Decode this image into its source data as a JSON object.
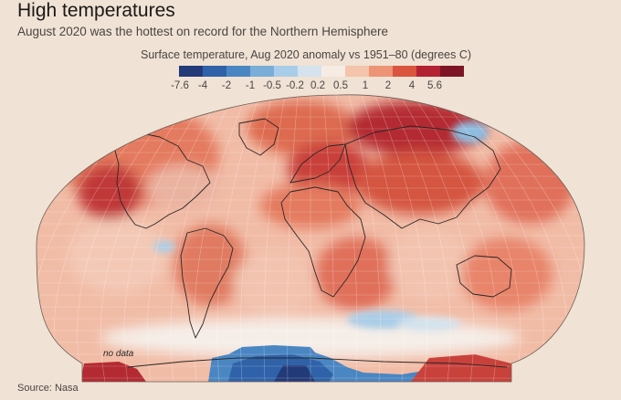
{
  "header": {
    "title": "High temperatures",
    "subtitle": "August 2020 was the hottest on record for the Northern Hemisphere"
  },
  "legend": {
    "title": "Surface temperature, Aug 2020 anomaly vs 1951–80 (degrees C)",
    "ticks": [
      "-7.6",
      "-4",
      "-2",
      "-1",
      "-0.5",
      "-0.2",
      "0.2",
      "0.5",
      "1",
      "2",
      "4",
      "5.6"
    ],
    "colors": [
      "#233a78",
      "#2f62a8",
      "#4a86c2",
      "#7aaed8",
      "#a9cde8",
      "#d4e3ee",
      "#f7ece4",
      "#f4c4ac",
      "#ed9477",
      "#d9553f",
      "#b32232",
      "#7e1526"
    ]
  },
  "map": {
    "nodata_label": "no data",
    "colors": {
      "ocean_base": "#f1bca6",
      "warm": "#e88a6f",
      "hot": "#d4543f",
      "very_hot": "#b42a33",
      "neutral": "#f5eee8",
      "cool": "#a9cde8",
      "cold": "#4a86c2",
      "very_cold": "#2f62a8",
      "coast": "#2a2626",
      "grid": "#ffffff"
    }
  },
  "footer": {
    "source": "Source: Nasa"
  }
}
